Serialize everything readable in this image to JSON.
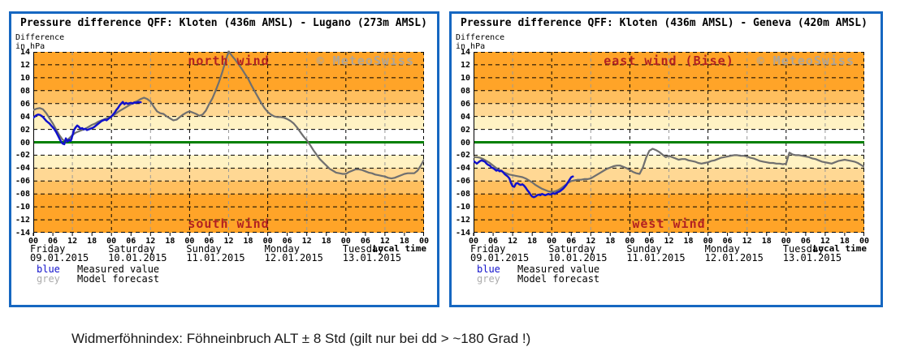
{
  "page": {
    "caption": "Widmerföhnindex: Föhneinbruch ALT ± 8 Std (gilt nur bei dd > ~180 Grad !)"
  },
  "colors": {
    "panel_border": "#1667C1",
    "zero_line": "#008000",
    "grid_major": "#000000",
    "grid_noon": "#999999",
    "measured_line": "#1111CC",
    "forecast_line": "#6F6F6F",
    "wind_label": "#B22222",
    "watermark": "#A6A6A6",
    "legend_blue": "#1111CC",
    "legend_grey": "#ABABAB"
  },
  "axis": {
    "ylim": [
      -14,
      14
    ],
    "ytick_step": 2,
    "ytick_labels": [
      "14",
      "12",
      "10",
      "08",
      "06",
      "04",
      "02",
      "00",
      "-02",
      "-04",
      "-06",
      "-08",
      "-10",
      "-12",
      "-14"
    ],
    "hours_total": 120,
    "hour_tick_step": 6,
    "hour_tick_labels": [
      {
        "h": 0,
        "label": "00"
      },
      {
        "h": 6,
        "label": "06"
      },
      {
        "h": 12,
        "label": "12"
      },
      {
        "h": 18,
        "label": "18"
      },
      {
        "h": 24,
        "label": "00"
      },
      {
        "h": 30,
        "label": "06"
      },
      {
        "h": 36,
        "label": "12"
      },
      {
        "h": 42,
        "label": "18"
      },
      {
        "h": 48,
        "label": "00"
      },
      {
        "h": 54,
        "label": "06"
      },
      {
        "h": 60,
        "label": "12"
      },
      {
        "h": 66,
        "label": "18"
      },
      {
        "h": 72,
        "label": "00"
      },
      {
        "h": 78,
        "label": "06"
      },
      {
        "h": 84,
        "label": "12"
      },
      {
        "h": 90,
        "label": "18"
      },
      {
        "h": 96,
        "label": "00"
      },
      {
        "h": 102,
        "label": "06"
      },
      {
        "h": 108,
        "label": "12"
      },
      {
        "h": 114,
        "label": "18"
      },
      {
        "h": 120,
        "label": "00"
      }
    ],
    "grid_hours": [
      {
        "h": 12,
        "style": "noon"
      },
      {
        "h": 24,
        "style": "midnight"
      },
      {
        "h": 36,
        "style": "noon"
      },
      {
        "h": 48,
        "style": "midnight"
      },
      {
        "h": 60,
        "style": "noon"
      },
      {
        "h": 72,
        "style": "midnight"
      },
      {
        "h": 84,
        "style": "noon"
      },
      {
        "h": 96,
        "style": "midnight"
      },
      {
        "h": 108,
        "style": "noon"
      },
      {
        "h": 120,
        "style": "midnight"
      }
    ],
    "days": [
      {
        "h": 0,
        "name": "Friday",
        "date": "09.01.2015"
      },
      {
        "h": 24,
        "name": "Saturday",
        "date": "10.01.2015"
      },
      {
        "h": 48,
        "name": "Sunday",
        "date": "11.01.2015"
      },
      {
        "h": 72,
        "name": "Monday",
        "date": "12.01.2015"
      },
      {
        "h": 96,
        "name": "Tuesday",
        "date": "13.01.2015"
      }
    ],
    "local_time_label": "Local time",
    "bands": [
      {
        "from": 8,
        "to": 14,
        "color": "#FFA428"
      },
      {
        "from": 6,
        "to": 8,
        "color": "#FFBF5E"
      },
      {
        "from": 4,
        "to": 6,
        "color": "#FFD894"
      },
      {
        "from": 2,
        "to": 4,
        "color": "#FFF2C3"
      },
      {
        "from": -2,
        "to": 2,
        "color": "#FFFFFF"
      },
      {
        "from": -4,
        "to": -2,
        "color": "#FFF2C3"
      },
      {
        "from": -6,
        "to": -4,
        "color": "#FFD894"
      },
      {
        "from": -8,
        "to": -6,
        "color": "#FFBF5E"
      },
      {
        "from": -14,
        "to": -8,
        "color": "#FFA428"
      }
    ]
  },
  "legend": {
    "entries": [
      {
        "swatch_label": "blue",
        "swatch_color": "#1111CC",
        "label": "Measured value"
      },
      {
        "swatch_label": "grey",
        "swatch_color": "#ABABAB",
        "label": "Model forecast"
      }
    ]
  },
  "chart_data": [
    {
      "type": "line",
      "title": "Pressure difference QFF: Kloten (436m AMSL) - Lugano (273m AMSL)",
      "ylabel_line1": "Difference",
      "ylabel_line2": "in hPa",
      "top_label": "north wind",
      "bottom_label": "south wind",
      "watermark": "© MeteoSwiss",
      "xlabel": "Local time",
      "ylim": [
        -14,
        14
      ],
      "series": [
        {
          "name": "Measured value",
          "color": "#1111CC",
          "x_start": 0,
          "x_step": 0.5,
          "y": [
            3.8,
            4.0,
            4.2,
            4.3,
            4.25,
            4.1,
            3.9,
            3.6,
            3.3,
            3.1,
            2.9,
            2.6,
            2.3,
            2.0,
            1.6,
            1.1,
            0.6,
            0.1,
            -0.2,
            -0.3,
            0.6,
            0.1,
            0.4,
            0.2,
            1.0,
            1.9,
            2.3,
            2.6,
            2.4,
            2.1,
            2.2,
            2.0,
            2.1,
            1.9,
            2.0,
            2.1,
            2.2,
            2.3,
            2.5,
            2.7,
            2.9,
            3.1,
            3.3,
            3.4,
            3.5,
            3.4,
            3.6,
            3.8,
            4.0,
            4.3,
            4.6,
            5.0,
            5.3,
            5.7,
            6.0,
            6.25,
            5.9,
            6.1,
            5.95,
            6.05,
            6.1,
            6.0,
            6.15,
            6.1,
            6.2,
            6.2,
            6.2
          ]
        },
        {
          "name": "Model forecast",
          "color": "#6F6F6F",
          "x_start": 0,
          "x_step": 1,
          "y": [
            5.0,
            5.2,
            5.3,
            5.1,
            4.5,
            3.7,
            2.9,
            2.0,
            1.1,
            0.4,
            0.1,
            0.6,
            1.1,
            1.5,
            1.7,
            1.9,
            2.1,
            2.4,
            2.7,
            2.9,
            3.2,
            3.4,
            3.6,
            3.8,
            4.0,
            4.3,
            4.7,
            5.0,
            5.3,
            5.6,
            5.9,
            6.2,
            6.4,
            6.7,
            6.9,
            6.7,
            6.3,
            5.5,
            4.8,
            4.5,
            4.4,
            4.0,
            3.7,
            3.4,
            3.5,
            3.9,
            4.3,
            4.6,
            4.8,
            4.6,
            4.4,
            4.1,
            4.3,
            4.9,
            5.9,
            6.8,
            8.0,
            9.3,
            10.8,
            12.5,
            14.1,
            13.4,
            12.8,
            12.1,
            11.4,
            10.6,
            9.8,
            8.8,
            7.9,
            7.0,
            6.1,
            5.3,
            4.7,
            4.3,
            4.0,
            3.9,
            3.9,
            3.8,
            3.6,
            3.3,
            2.9,
            2.3,
            1.6,
            0.9,
            0.3,
            -0.4,
            -1.2,
            -1.9,
            -2.6,
            -3.1,
            -3.6,
            -4.1,
            -4.4,
            -4.7,
            -4.8,
            -4.9,
            -4.9,
            -4.6,
            -4.4,
            -4.2,
            -4.2,
            -4.3,
            -4.5,
            -4.7,
            -4.8,
            -5.0,
            -5.1,
            -5.2,
            -5.3,
            -5.5,
            -5.6,
            -5.5,
            -5.3,
            -5.1,
            -4.9,
            -4.8,
            -4.8,
            -4.8,
            -4.4,
            -3.6,
            -2.7
          ]
        }
      ]
    },
    {
      "type": "line",
      "title": "Pressure difference QFF: Kloten (436m AMSL) - Geneva (420m AMSL)",
      "ylabel_line1": "Difference",
      "ylabel_line2": "in hPa",
      "top_label": "east wind (Bise)",
      "bottom_label": "west wind",
      "watermark": "© MeteoSwiss",
      "xlabel": "Local time",
      "ylim": [
        -14,
        14
      ],
      "series": [
        {
          "name": "Measured value",
          "color": "#1111CC",
          "x_start": 0,
          "x_step": 0.5,
          "y": [
            -2.9,
            -3.1,
            -3.3,
            -3.1,
            -2.9,
            -2.8,
            -2.9,
            -3.0,
            -3.3,
            -3.5,
            -3.6,
            -3.9,
            -4.0,
            -4.2,
            -4.4,
            -4.3,
            -4.5,
            -4.4,
            -4.6,
            -4.9,
            -5.1,
            -5.3,
            -5.6,
            -6.3,
            -6.8,
            -6.9,
            -6.4,
            -6.3,
            -6.5,
            -6.6,
            -6.5,
            -6.7,
            -7.0,
            -7.4,
            -7.7,
            -8.1,
            -8.4,
            -8.5,
            -8.4,
            -8.2,
            -8.1,
            -8.2,
            -8.0,
            -8.1,
            -8.2,
            -8.1,
            -8.0,
            -8.1,
            -8.0,
            -7.9,
            -8.0,
            -7.8,
            -7.7,
            -7.6,
            -7.4,
            -7.2,
            -6.9,
            -6.6,
            -6.2,
            -5.8,
            -5.4,
            -5.3
          ]
        },
        {
          "name": "Model forecast",
          "color": "#6F6F6F",
          "x_start": 0,
          "x_step": 1,
          "y": [
            -2.3,
            -2.3,
            -2.4,
            -2.6,
            -2.9,
            -3.2,
            -3.6,
            -4.0,
            -4.3,
            -4.6,
            -4.8,
            -5.0,
            -5.1,
            -5.2,
            -5.3,
            -5.4,
            -5.6,
            -5.9,
            -6.2,
            -6.6,
            -6.9,
            -7.2,
            -7.4,
            -7.6,
            -7.7,
            -7.6,
            -7.4,
            -7.1,
            -6.7,
            -6.3,
            -6.0,
            -5.9,
            -5.8,
            -5.8,
            -5.7,
            -5.7,
            -5.6,
            -5.3,
            -5.0,
            -4.7,
            -4.4,
            -4.1,
            -3.9,
            -3.7,
            -3.6,
            -3.6,
            -3.8,
            -4.0,
            -4.3,
            -4.6,
            -4.8,
            -4.9,
            -3.9,
            -2.4,
            -1.3,
            -1.0,
            -1.2,
            -1.5,
            -1.9,
            -2.3,
            -2.1,
            -2.3,
            -2.5,
            -2.7,
            -2.6,
            -2.6,
            -2.8,
            -2.9,
            -3.0,
            -3.2,
            -3.3,
            -3.2,
            -3.1,
            -2.9,
            -2.8,
            -2.6,
            -2.4,
            -2.3,
            -2.2,
            -2.1,
            -2.0,
            -2.0,
            -2.1,
            -2.1,
            -2.2,
            -2.4,
            -2.5,
            -2.7,
            -2.9,
            -3.0,
            -3.1,
            -3.2,
            -3.2,
            -3.3,
            -3.3,
            -3.4,
            -3.3,
            -1.6,
            -1.9,
            -2.0,
            -2.0,
            -2.1,
            -2.2,
            -2.3,
            -2.5,
            -2.6,
            -2.8,
            -3.0,
            -3.1,
            -3.2,
            -3.3,
            -3.1,
            -2.9,
            -2.8,
            -2.7,
            -2.8,
            -2.9,
            -3.0,
            -3.2,
            -3.5,
            -3.8
          ]
        }
      ]
    }
  ]
}
